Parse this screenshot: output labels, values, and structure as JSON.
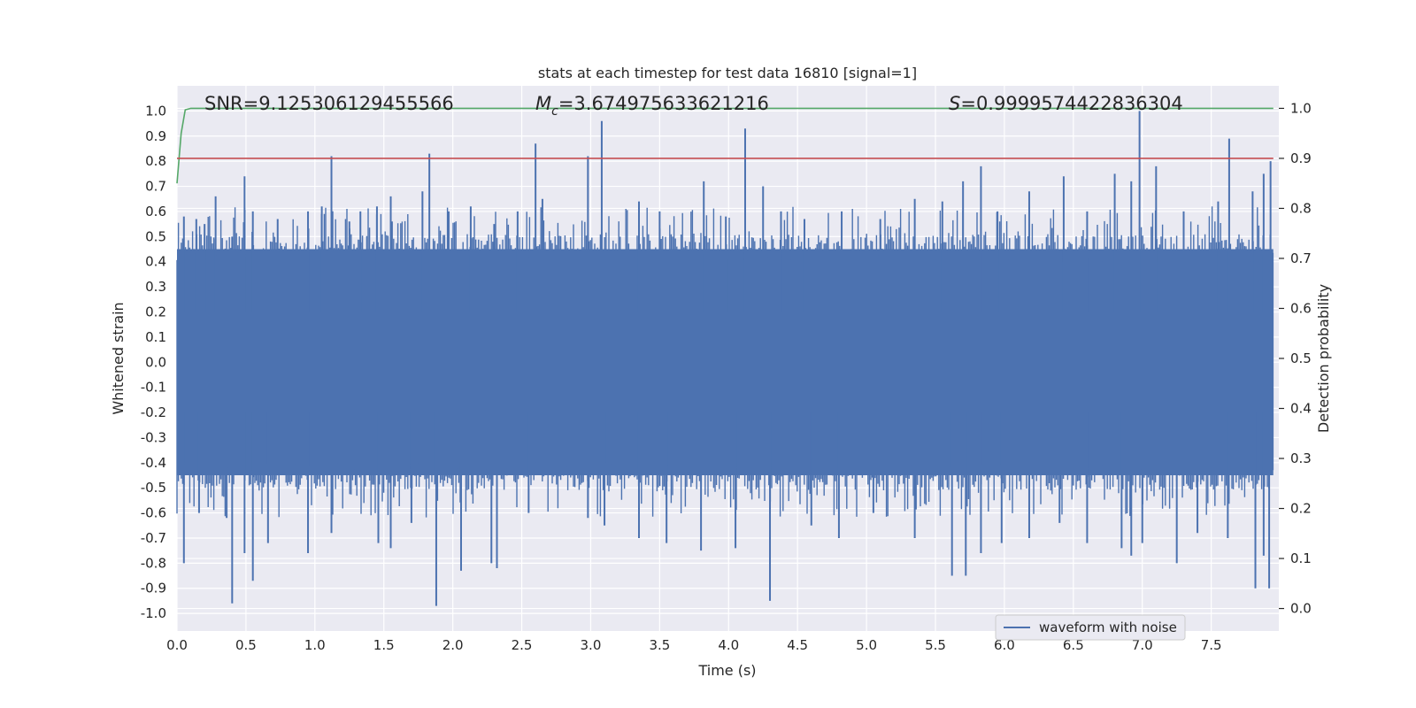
{
  "chart_data": {
    "type": "line",
    "title": "stats at each timestep for test data 16810 [signal=1]",
    "xlabel": "Time (s)",
    "ylabel": "Whitened strain",
    "y2label": "Detection probability",
    "xlim": [
      0,
      7.99
    ],
    "ylim": [
      -1.07,
      1.1
    ],
    "y2lim": [
      -0.045,
      1.045
    ],
    "xticks": [
      "0.0",
      "0.5",
      "1.0",
      "1.5",
      "2.0",
      "2.5",
      "3.0",
      "3.5",
      "4.0",
      "4.5",
      "5.0",
      "5.5",
      "6.0",
      "6.5",
      "7.0",
      "7.5"
    ],
    "yticks": [
      "1.0",
      "0.9",
      "0.8",
      "0.7",
      "0.6",
      "0.5",
      "0.4",
      "0.3",
      "0.2",
      "0.1",
      "0.0",
      "-0.1",
      "-0.2",
      "-0.3",
      "-0.4",
      "-0.5",
      "-0.6",
      "-0.7",
      "-0.8",
      "-0.9",
      "-1.0"
    ],
    "y2ticks": [
      "1.0",
      "0.9",
      "0.8",
      "0.7",
      "0.6",
      "0.5",
      "0.4",
      "0.3",
      "0.2",
      "0.1",
      "0.0"
    ],
    "annotations": {
      "snr": "SNR=9.125306129455566",
      "mc_symbol": "M",
      "mc_sub": "c",
      "mc_value": "=3.674975633621216",
      "s_symbol": "S",
      "s_value": "=0.9999574422836304"
    },
    "grid": true,
    "legend": {
      "placement": "lower-right",
      "entries": [
        "waveform with noise"
      ]
    },
    "colors": {
      "background": "#eaeaf2",
      "grid": "#ffffff",
      "waveform": "#4c72b0",
      "probability": "#55a868",
      "threshold": "#c44e52"
    },
    "series": [
      {
        "name": "waveform with noise",
        "axis": "left",
        "envelope_upper": 0.45,
        "envelope_lower": -0.45,
        "spikes_up": [
          [
            0.05,
            0.58
          ],
          [
            0.14,
            0.57
          ],
          [
            0.2,
            0.55
          ],
          [
            0.28,
            0.66
          ],
          [
            0.4,
            0.5
          ],
          [
            0.49,
            0.74
          ],
          [
            0.55,
            0.6
          ],
          [
            0.73,
            0.57
          ],
          [
            0.95,
            0.6
          ],
          [
            1.05,
            0.62
          ],
          [
            1.12,
            0.82
          ],
          [
            1.25,
            0.56
          ],
          [
            1.33,
            0.6
          ],
          [
            1.45,
            0.62
          ],
          [
            1.55,
            0.66
          ],
          [
            1.78,
            0.68
          ],
          [
            1.83,
            0.83
          ],
          [
            1.97,
            0.6
          ],
          [
            2.13,
            0.62
          ],
          [
            2.3,
            0.55
          ],
          [
            2.47,
            0.6
          ],
          [
            2.6,
            0.87
          ],
          [
            2.65,
            0.65
          ],
          [
            2.98,
            0.82
          ],
          [
            3.08,
            0.96
          ],
          [
            3.35,
            0.64
          ],
          [
            3.5,
            0.6
          ],
          [
            3.82,
            0.72
          ],
          [
            3.98,
            0.58
          ],
          [
            4.12,
            0.93
          ],
          [
            4.25,
            0.7
          ],
          [
            4.38,
            0.6
          ],
          [
            4.55,
            0.57
          ],
          [
            4.82,
            0.6
          ],
          [
            5.1,
            0.57
          ],
          [
            5.35,
            0.65
          ],
          [
            5.55,
            0.64
          ],
          [
            5.7,
            0.72
          ],
          [
            5.83,
            0.78
          ],
          [
            5.95,
            0.6
          ],
          [
            6.18,
            0.68
          ],
          [
            6.43,
            0.74
          ],
          [
            6.6,
            0.6
          ],
          [
            6.8,
            0.75
          ],
          [
            6.92,
            0.72
          ],
          [
            6.98,
            1.0
          ],
          [
            7.1,
            0.78
          ],
          [
            7.3,
            0.6
          ],
          [
            7.55,
            0.64
          ],
          [
            7.63,
            0.89
          ],
          [
            7.8,
            0.68
          ],
          [
            7.88,
            0.75
          ],
          [
            7.93,
            0.8
          ]
        ],
        "spikes_down": [
          [
            0.05,
            -0.8
          ],
          [
            0.16,
            -0.6
          ],
          [
            0.36,
            -0.62
          ],
          [
            0.4,
            -0.96
          ],
          [
            0.49,
            -0.76
          ],
          [
            0.55,
            -0.87
          ],
          [
            0.66,
            -0.72
          ],
          [
            0.95,
            -0.76
          ],
          [
            1.12,
            -0.68
          ],
          [
            1.46,
            -0.72
          ],
          [
            1.55,
            -0.74
          ],
          [
            1.7,
            -0.64
          ],
          [
            1.88,
            -0.97
          ],
          [
            2.06,
            -0.83
          ],
          [
            2.28,
            -0.8
          ],
          [
            2.32,
            -0.82
          ],
          [
            2.55,
            -0.6
          ],
          [
            2.98,
            -0.62
          ],
          [
            3.1,
            -0.65
          ],
          [
            3.35,
            -0.7
          ],
          [
            3.55,
            -0.72
          ],
          [
            3.8,
            -0.75
          ],
          [
            4.05,
            -0.74
          ],
          [
            4.3,
            -0.95
          ],
          [
            4.6,
            -0.65
          ],
          [
            4.8,
            -0.7
          ],
          [
            5.05,
            -0.6
          ],
          [
            5.35,
            -0.7
          ],
          [
            5.62,
            -0.85
          ],
          [
            5.72,
            -0.85
          ],
          [
            5.83,
            -0.76
          ],
          [
            5.98,
            -0.72
          ],
          [
            6.18,
            -0.7
          ],
          [
            6.4,
            -0.64
          ],
          [
            6.6,
            -0.72
          ],
          [
            6.85,
            -0.74
          ],
          [
            6.92,
            -0.77
          ],
          [
            7.0,
            -0.72
          ],
          [
            7.25,
            -0.8
          ],
          [
            7.4,
            -0.68
          ],
          [
            7.62,
            -0.7
          ],
          [
            7.82,
            -0.9
          ],
          [
            7.88,
            -0.77
          ],
          [
            7.92,
            -0.9
          ]
        ]
      },
      {
        "name": "",
        "axis": "right",
        "x": [
          0,
          0.03,
          0.06,
          0.1,
          0.15,
          7.95
        ],
        "y": [
          0.85,
          0.95,
          0.997,
          1.0,
          1.0,
          1.0
        ]
      },
      {
        "name": "",
        "axis": "right",
        "x": [
          0,
          7.95
        ],
        "y": [
          0.9,
          0.9
        ]
      }
    ]
  }
}
